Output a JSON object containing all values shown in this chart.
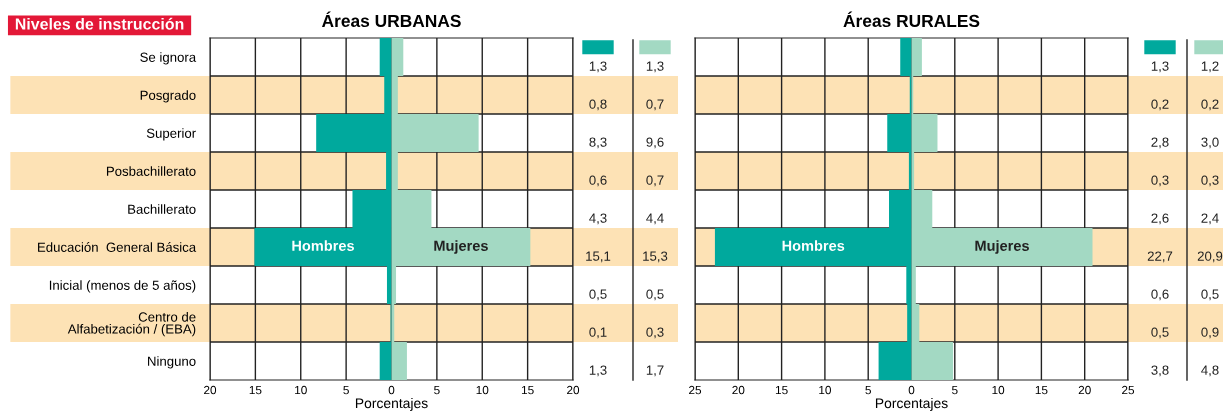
{
  "chart_data": [
    {
      "type": "bar",
      "orientation": "horizontal",
      "title": "Áreas URBANAS",
      "ylabel": "Niveles de instrucción",
      "xlabel": "Porcentajes",
      "categories": [
        "Se ignora",
        "Posgrado",
        "Superior",
        "Posbachillerato",
        "Bachillerato",
        "Educación  General Básica",
        "Inicial (menos de 5 años)",
        "Centro de\nAlfabetización / (EBA)",
        "Ninguno"
      ],
      "series": [
        {
          "name": "Hombres",
          "color": "#00a99d",
          "values": [
            1.3,
            0.8,
            8.3,
            0.6,
            4.3,
            15.1,
            0.5,
            0.1,
            1.3
          ],
          "base": [
            -1.3,
            -0.8,
            -8.3,
            -0.6,
            -4.3,
            -15.1,
            -0.5,
            -0.1,
            -1.3
          ],
          "value_labels": [
            "1,3",
            "0,8",
            "8,3",
            "0,6",
            "4,3",
            "15,1",
            "0,5",
            "0,1",
            "1,3"
          ]
        },
        {
          "name": "Mujeres",
          "color": "#a3d9c3",
          "values": [
            1.3,
            0.7,
            9.6,
            0.7,
            4.4,
            15.3,
            0.5,
            0.3,
            1.7
          ],
          "value_labels": [
            "1,3",
            "0,7",
            "9,6",
            "0,7",
            "4,4",
            "15,3",
            "0,5",
            "0,3",
            "1,7"
          ]
        }
      ],
      "xlim": [
        -20,
        20
      ],
      "xticks": [
        {
          "value": -20,
          "label": "20"
        },
        {
          "value": -15,
          "label": "15"
        },
        {
          "value": -10,
          "label": "10"
        },
        {
          "value": -5,
          "label": "5"
        },
        0,
        5,
        10,
        15,
        20
      ],
      "bands": [
        {
          "axis": "y",
          "from": "Posgrado",
          "to": "Posgrado",
          "color": "#fde2b5"
        },
        {
          "axis": "y",
          "from": "Posbachillerato",
          "to": "Posbachillerato",
          "color": "#fde2b5"
        },
        {
          "axis": "y",
          "from": "Educación  General Básica",
          "to": "Educación  General Básica",
          "color": "#fde2b5"
        },
        {
          "axis": "y",
          "from": "Centro de\nAlfabetización / (EBA)",
          "to": "Centro de\nAlfabetización / (EBA)",
          "color": "#fde2b5"
        }
      ],
      "grid": "x"
    },
    {
      "type": "bar",
      "orientation": "horizontal",
      "title": "Áreas RURALES",
      "xlabel": "Porcentajes",
      "tick_labels": "x",
      "categories": [
        "Se ignora",
        "Posgrado",
        "Superior",
        "Posbachillerato",
        "Bachillerato",
        "Educación  General Básica",
        "Inicial (menos de 5 años)",
        "Centro de\nAlfabetización / (EBA)",
        "Ninguno"
      ],
      "series": [
        {
          "name": "Hombres",
          "color": "#00a99d",
          "values": [
            1.3,
            0.2,
            2.8,
            0.3,
            2.6,
            22.7,
            0.6,
            0.5,
            3.8
          ],
          "base": [
            -1.3,
            -0.2,
            -2.8,
            -0.3,
            -2.6,
            -22.7,
            -0.6,
            -0.5,
            -3.8
          ],
          "value_labels": [
            "1,3",
            "0,2",
            "2,8",
            "0,3",
            "2,6",
            "22,7",
            "0,6",
            "0,5",
            "3,8"
          ]
        },
        {
          "name": "Mujeres",
          "color": "#a3d9c3",
          "values": [
            1.2,
            0.2,
            3.0,
            0.3,
            2.4,
            20.9,
            0.5,
            0.9,
            4.8
          ],
          "value_labels": [
            "1,2",
            "0,2",
            "3,0",
            "0,3",
            "2,4",
            "20,9",
            "0,5",
            "0,9",
            "4,8"
          ]
        }
      ],
      "xlim": [
        -25,
        25
      ],
      "xticks": [
        {
          "value": -25,
          "label": "25"
        },
        {
          "value": -20,
          "label": "20"
        },
        {
          "value": -15,
          "label": "15"
        },
        {
          "value": -10,
          "label": "10"
        },
        {
          "value": -5,
          "label": "5"
        },
        0,
        5,
        10,
        15,
        20,
        25
      ],
      "bands": [
        {
          "axis": "y",
          "from": "Posgrado",
          "to": "Posgrado",
          "color": "#fde2b5"
        },
        {
          "axis": "y",
          "from": "Posbachillerato",
          "to": "Posbachillerato",
          "color": "#fde2b5"
        },
        {
          "axis": "y",
          "from": "Educación  General Básica",
          "to": "Educación  General Básica",
          "color": "#fde2b5"
        },
        {
          "axis": "y",
          "from": "Centro de\nAlfabetización / (EBA)",
          "to": "Centro de\nAlfabetización / (EBA)",
          "color": "#fde2b5"
        }
      ],
      "grid": "x"
    }
  ]
}
